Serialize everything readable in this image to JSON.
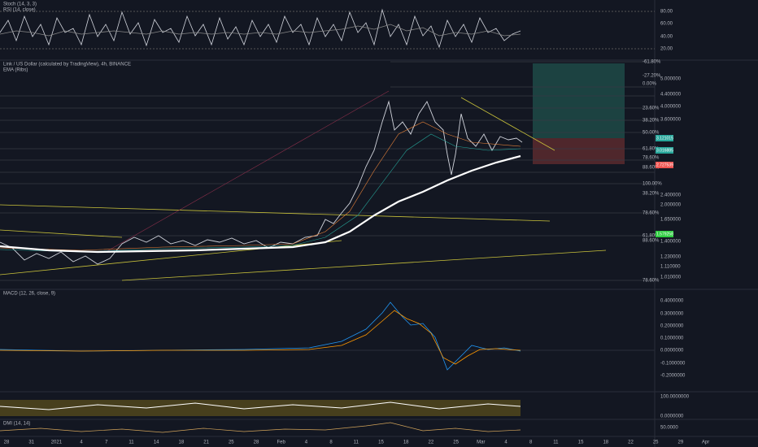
{
  "stoch_panel": {
    "labels": [
      "Stoch (14, 3, 3)",
      "RSI (14, close)"
    ],
    "axis": [
      "80.00",
      "60.00",
      "40.00",
      "20.00"
    ]
  },
  "main_panel": {
    "title": "Link / US Dollar (calculated by TradingView), 4h, BINANCE",
    "indicator": "EMA (Ribs)",
    "axis": [
      "5.000000",
      "4.400000",
      "4.000000",
      "3.600000",
      "2.400000",
      "2.000000",
      "1.650000",
      "1.400000",
      "1.230000",
      "1.110000",
      "1.010000"
    ],
    "fib_labels": [
      "-61.80%",
      "-27.20%",
      "0.00%",
      "23.60%",
      "38.20%",
      "50.00%",
      "61.80%",
      "78.60%",
      "88.60%",
      "100.00%",
      "38.20%",
      "78.60%",
      "61.80%",
      "88.60%",
      "78.60%"
    ],
    "price_tags": [
      "3.121015",
      "3.016885",
      "2.727539",
      "1.579258"
    ]
  },
  "macd_panel": {
    "label": "MACD (12, 26, close, 9)",
    "axis": [
      "0.4000000",
      "0.3000000",
      "0.2000000",
      "0.1000000",
      "0.0000000",
      "-0.1000000",
      "-0.2000000"
    ]
  },
  "osc_panel": {
    "axis": [
      "100.0000000",
      "0.0000000"
    ]
  },
  "dmi_panel": {
    "label": "DMI (14, 14)",
    "axis": [
      "50.0000"
    ]
  },
  "date_axis": [
    "28",
    "31",
    "2021",
    "4",
    "7",
    "11",
    "14",
    "18",
    "21",
    "25",
    "28",
    "Feb",
    "4",
    "8",
    "11",
    "15",
    "18",
    "22",
    "25",
    "Mar",
    "4",
    "8",
    "11",
    "15",
    "18",
    "22",
    "25",
    "29",
    "Apr"
  ]
}
